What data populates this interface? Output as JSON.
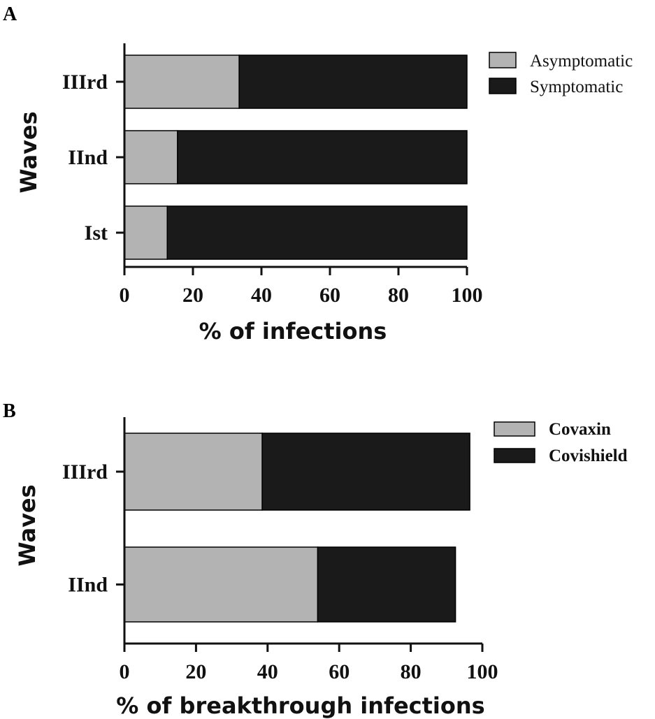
{
  "chart_data": [
    {
      "panel": "A",
      "type": "bar",
      "orientation": "horizontal",
      "stacked": true,
      "categories": [
        "IIIrd",
        "IInd",
        "Ist"
      ],
      "series": [
        {
          "name": "Asymptomatic",
          "values": [
            33.5,
            15.5,
            12.5
          ],
          "color": "#b3b3b3"
        },
        {
          "name": "Symptomatic",
          "values": [
            66.5,
            84.5,
            87.5
          ],
          "color": "#1a1a1a"
        }
      ],
      "xlabel": "% of infections",
      "ylabel": "Waves",
      "xlim": [
        0,
        100
      ],
      "xticks": [
        "0",
        "20",
        "40",
        "60",
        "80",
        "100"
      ],
      "legend_position": "top-right",
      "grid": false
    },
    {
      "panel": "B",
      "type": "bar",
      "orientation": "horizontal",
      "stacked": true,
      "categories": [
        "IIIrd",
        "IInd"
      ],
      "series": [
        {
          "name": "Covaxin",
          "values": [
            38.5,
            54
          ],
          "color": "#b3b3b3"
        },
        {
          "name": "Covishield",
          "values": [
            58,
            38.5
          ],
          "color": "#1a1a1a"
        }
      ],
      "xlabel": "% of breakthrough infections",
      "ylabel": "Waves",
      "xlim": [
        0,
        100
      ],
      "xticks": [
        "0",
        "20",
        "40",
        "60",
        "80",
        "100"
      ],
      "legend_position": "top-right",
      "grid": false
    }
  ]
}
